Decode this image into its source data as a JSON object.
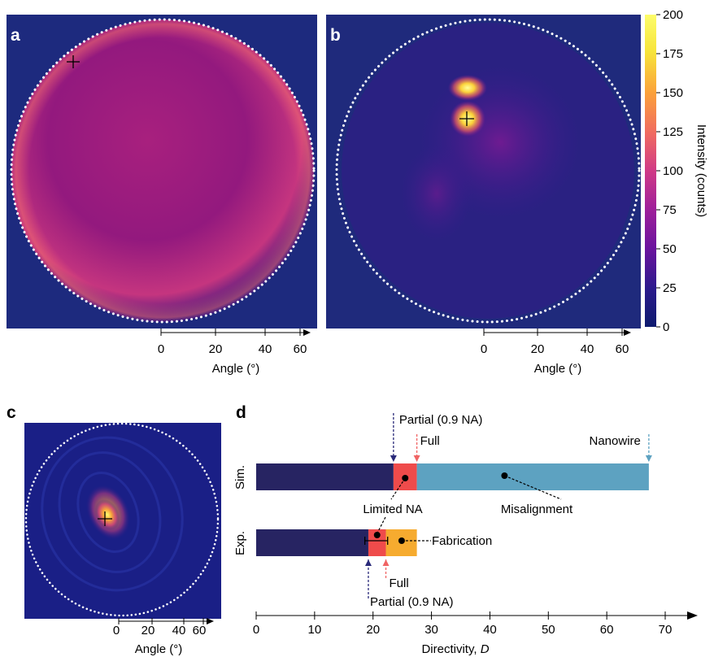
{
  "panels": {
    "a": {
      "label": "a",
      "xlabel": "Angle (°)",
      "ticks": [
        "0",
        "20",
        "40",
        "60"
      ]
    },
    "b": {
      "label": "b",
      "xlabel": "Angle (°)",
      "ticks": [
        "0",
        "20",
        "40",
        "60"
      ]
    },
    "c": {
      "label": "c",
      "xlabel": "Angle (°)",
      "ticks": [
        "0",
        "20",
        "40",
        "60"
      ]
    },
    "d": {
      "label": "d"
    }
  },
  "colorbar": {
    "label": "Intensity (counts)",
    "ticks": [
      "0",
      "25",
      "50",
      "75",
      "100",
      "125",
      "150",
      "175",
      "200"
    ],
    "colors": [
      "#0d1a6e",
      "#2a1a8c",
      "#6a139e",
      "#a0209a",
      "#d03a86",
      "#f06a60",
      "#fba13a",
      "#f7e43a",
      "#fcfc6a"
    ]
  },
  "chart_data": {
    "type": "bar",
    "orientation": "horizontal",
    "xlabel": "Directivity, D",
    "xlim": [
      0,
      70
    ],
    "xticks": [
      "0",
      "10",
      "20",
      "30",
      "40",
      "50",
      "60",
      "70"
    ],
    "rows": [
      {
        "label": "Sim.",
        "segments": [
          {
            "start": 0,
            "end": 23.5,
            "color": "#272462"
          },
          {
            "start": 23.5,
            "end": 27.5,
            "color": "#ef4b4b"
          },
          {
            "start": 27.5,
            "end": 67.2,
            "color": "#5da2c1"
          }
        ],
        "points": [
          {
            "x": 25.5,
            "label": "Limited NA"
          },
          {
            "x": 42.5,
            "label": "Misalignment"
          }
        ],
        "markers": [
          {
            "x": 23.5,
            "label": "Partial (0.9 NA)",
            "color": "#2a2a7a"
          },
          {
            "x": 27.5,
            "label": "Full",
            "color": "#f06464"
          },
          {
            "x": 67.2,
            "label": "Nanowire",
            "color": "#5da2c1"
          }
        ]
      },
      {
        "label": "Exp.",
        "segments": [
          {
            "start": 0,
            "end": 19.2,
            "color": "#272462"
          },
          {
            "start": 19.2,
            "end": 22.2,
            "color": "#ef4b4b"
          },
          {
            "start": 22.2,
            "end": 27.5,
            "color": "#f6ab2f"
          }
        ],
        "points": [
          {
            "x": 20.7,
            "error": [
              18.6,
              22.5
            ]
          },
          {
            "x": 24.9,
            "label": "Fabrication"
          }
        ],
        "markers": [
          {
            "x": 22.2,
            "label": "Full",
            "color": "#f06464"
          },
          {
            "x": 19.2,
            "label": "Partial (0.9 NA)",
            "color": "#2a2a7a"
          }
        ]
      }
    ]
  }
}
